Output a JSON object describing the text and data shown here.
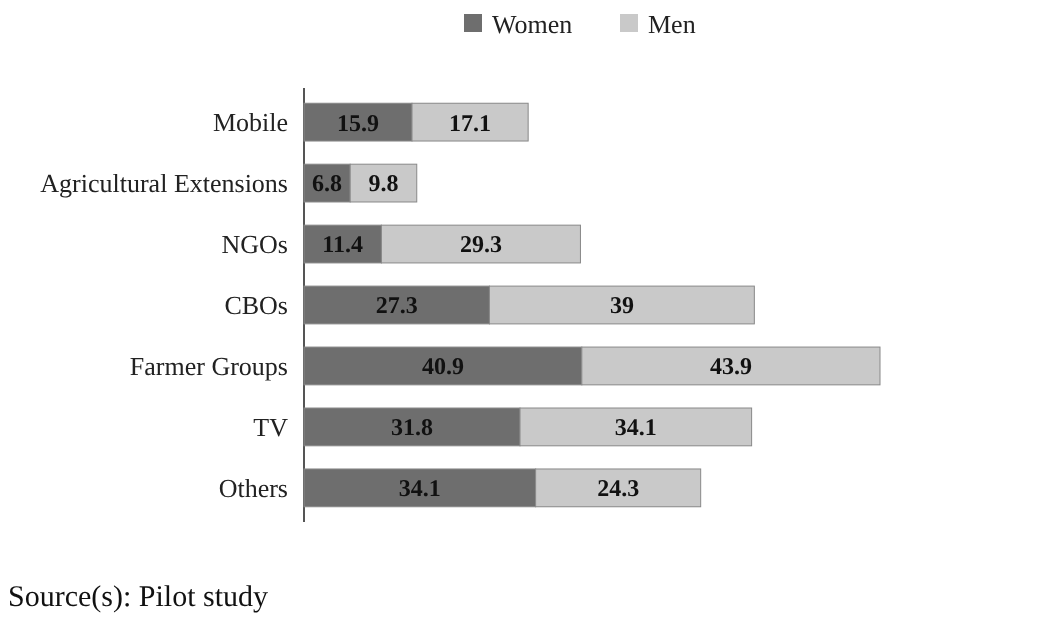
{
  "chart_data": {
    "type": "bar",
    "orientation": "horizontal",
    "stacked": true,
    "data_labels": true,
    "legend": "top",
    "categories": [
      "Mobile",
      "Agricultural Extensions",
      "NGOs",
      "CBOs",
      "Farmer Groups",
      "TV",
      "Others"
    ],
    "series": [
      {
        "name": "Women",
        "color": "#6e6e6e",
        "values": [
          15.9,
          6.8,
          11.4,
          27.3,
          40.9,
          31.8,
          34.1
        ]
      },
      {
        "name": "Men",
        "color": "#c9c9c9",
        "values": [
          17.1,
          9.8,
          29.3,
          39,
          43.9,
          34.1,
          24.3
        ]
      }
    ],
    "annotations": [
      "Source(s): Pilot study"
    ]
  }
}
